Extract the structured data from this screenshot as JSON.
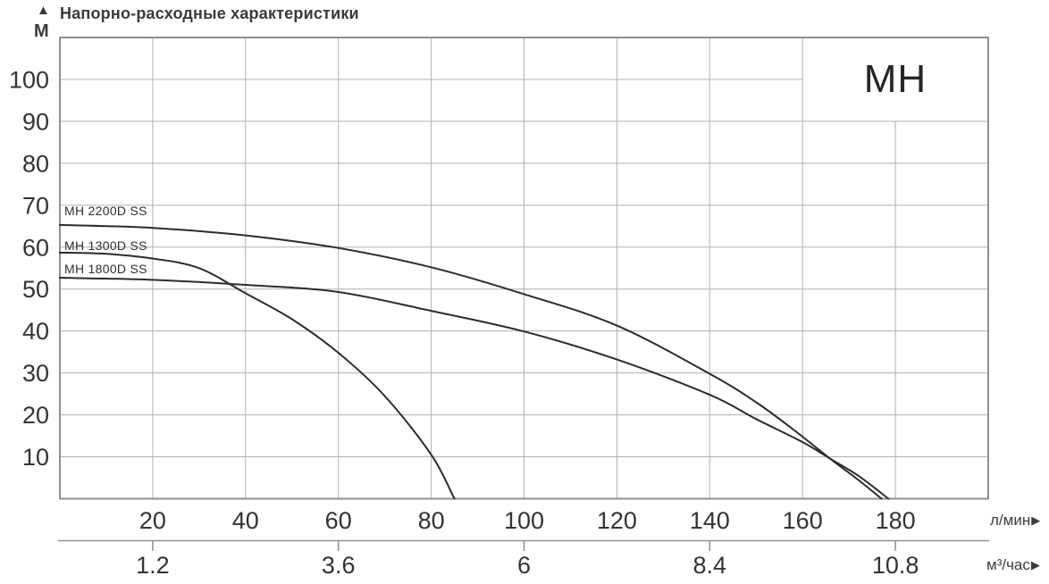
{
  "header": {
    "title": "Напорно-расходные характеристики",
    "arrow_up": "▲",
    "y_unit": "М"
  },
  "corner_label": "МН",
  "x_axis": {
    "unit": "л/мин",
    "arrow": "▶"
  },
  "x_axis_secondary": {
    "unit": "м³/час",
    "arrow": "▶"
  },
  "chart_data": {
    "type": "line",
    "title": "Напорно-расходные характеристики",
    "xlabel_primary": "л/мин",
    "xlabel_secondary": "м³/час",
    "ylabel": "М",
    "x_range_lmin": [
      0,
      200
    ],
    "y_range_m": [
      0,
      110
    ],
    "grid": true,
    "legend_position": "labels-on-plot",
    "x_ticks_lmin": [
      20,
      40,
      60,
      80,
      100,
      120,
      140,
      160,
      180
    ],
    "y_ticks_m": [
      10,
      20,
      30,
      40,
      50,
      60,
      70,
      80,
      90,
      100
    ],
    "secondary_ticks": [
      {
        "label": "1.2",
        "lmin": 20
      },
      {
        "label": "3.6",
        "lmin": 60
      },
      {
        "label": "6",
        "lmin": 100
      },
      {
        "label": "8.4",
        "lmin": 140
      },
      {
        "label": "10.8",
        "lmin": 180
      }
    ],
    "series": [
      {
        "name": "МН 2200D SS",
        "points_lmin_m": [
          [
            0,
            65.3
          ],
          [
            20,
            64.6
          ],
          [
            40,
            62.8
          ],
          [
            60,
            59.8
          ],
          [
            80,
            55.2
          ],
          [
            100,
            48.8
          ],
          [
            120,
            41.3
          ],
          [
            140,
            29.8
          ],
          [
            150,
            23
          ],
          [
            158,
            16.5
          ],
          [
            166,
            9.5
          ],
          [
            172,
            4.5
          ],
          [
            177,
            0
          ]
        ]
      },
      {
        "name": "МН 1300D SS",
        "points_lmin_m": [
          [
            0,
            58.7
          ],
          [
            10,
            58.4
          ],
          [
            20,
            57.3
          ],
          [
            30,
            55
          ],
          [
            40,
            49
          ],
          [
            50,
            42.8
          ],
          [
            60,
            34.8
          ],
          [
            70,
            24.5
          ],
          [
            80,
            10.5
          ],
          [
            85,
            0
          ]
        ]
      },
      {
        "name": "МН 1800D SS",
        "points_lmin_m": [
          [
            0,
            52.7
          ],
          [
            20,
            52.2
          ],
          [
            40,
            51
          ],
          [
            60,
            49.3
          ],
          [
            80,
            44.8
          ],
          [
            100,
            39.9
          ],
          [
            120,
            33.2
          ],
          [
            140,
            24.8
          ],
          [
            150,
            19
          ],
          [
            160,
            13.5
          ],
          [
            166,
            9.5
          ],
          [
            172,
            5.5
          ],
          [
            178.5,
            0
          ]
        ]
      }
    ],
    "colors": {
      "curve": "#2b2b2b",
      "grid": "#b0b0b0",
      "border": "#8f8f8f",
      "text": "#333333"
    }
  }
}
